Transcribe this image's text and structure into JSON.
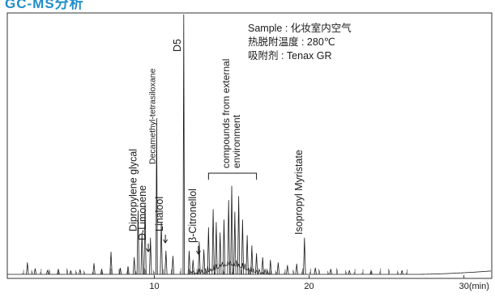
{
  "header": {
    "title": "GC-MS分析",
    "accent_color": "#1f8ec9"
  },
  "sample_info": {
    "line1": "Sample : 化妆室内空气",
    "line2": "热脱附温度 : 280℃",
    "line3": "吸附剂 : Tenax GR"
  },
  "chart_data": {
    "type": "line",
    "title": "",
    "xlabel": "",
    "ylabel": "",
    "x_unit_label": "30(min)",
    "xlim": [
      0.5,
      31.8
    ],
    "ylim": [
      0,
      100
    ],
    "ticks": [
      {
        "value": 10,
        "label": "10"
      },
      {
        "value": 20,
        "label": "20"
      },
      {
        "value": 30,
        "label": "30(min)"
      }
    ],
    "grid": false,
    "line_color": "#1a1a1a",
    "peaks": [
      {
        "x": 1.8,
        "h": 4.5
      },
      {
        "x": 2.3,
        "h": 2.2
      },
      {
        "x": 3.1,
        "h": 1.6
      },
      {
        "x": 3.8,
        "h": 2.0
      },
      {
        "x": 4.6,
        "h": 1.4
      },
      {
        "x": 5.2,
        "h": 1.8
      },
      {
        "x": 6.1,
        "h": 4.2
      },
      {
        "x": 6.6,
        "h": 2.0
      },
      {
        "x": 7.2,
        "h": 8.6
      },
      {
        "x": 7.8,
        "h": 2.4
      },
      {
        "x": 8.3,
        "h": 3.0
      },
      {
        "x": 8.7,
        "h": 6.5
      },
      {
        "x": 8.95,
        "h": 24.5
      },
      {
        "x": 9.2,
        "h": 16.0
      },
      {
        "x": 9.4,
        "h": 27.0
      },
      {
        "x": 9.75,
        "h": 14.0
      },
      {
        "x": 10.15,
        "h": 60.0
      },
      {
        "x": 10.45,
        "h": 20.0
      },
      {
        "x": 10.75,
        "h": 9.0
      },
      {
        "x": 11.2,
        "h": 7.0
      },
      {
        "x": 11.9,
        "h": 100.0
      },
      {
        "x": 12.25,
        "h": 9.0
      },
      {
        "x": 12.5,
        "h": 5.5
      },
      {
        "x": 12.9,
        "h": 12.5
      },
      {
        "x": 13.2,
        "h": 9.5
      },
      {
        "x": 13.5,
        "h": 18.0
      },
      {
        "x": 13.8,
        "h": 25.0
      },
      {
        "x": 14.0,
        "h": 20.0
      },
      {
        "x": 14.25,
        "h": 16.0
      },
      {
        "x": 14.5,
        "h": 21.0
      },
      {
        "x": 14.8,
        "h": 28.5
      },
      {
        "x": 15.0,
        "h": 34.0
      },
      {
        "x": 15.2,
        "h": 24.0
      },
      {
        "x": 15.45,
        "h": 30.0
      },
      {
        "x": 15.7,
        "h": 21.0
      },
      {
        "x": 16.0,
        "h": 15.0
      },
      {
        "x": 16.3,
        "h": 11.0
      },
      {
        "x": 16.6,
        "h": 8.0
      },
      {
        "x": 17.0,
        "h": 6.5
      },
      {
        "x": 17.5,
        "h": 5.5
      },
      {
        "x": 18.0,
        "h": 4.5
      },
      {
        "x": 18.6,
        "h": 3.5
      },
      {
        "x": 19.2,
        "h": 4.0
      },
      {
        "x": 19.7,
        "h": 14.0
      },
      {
        "x": 20.4,
        "h": 2.5
      },
      {
        "x": 21.4,
        "h": 2.0
      },
      {
        "x": 22.6,
        "h": 1.5
      },
      {
        "x": 24.0,
        "h": 1.2
      },
      {
        "x": 26.0,
        "h": 1.5
      }
    ],
    "annotations": [
      {
        "label": "Dipropylene glycal",
        "x": 8.95,
        "arrow": false
      },
      {
        "label": "D-Limonene",
        "x": 9.4,
        "arrow": true
      },
      {
        "label": "Linalool",
        "x": 10.45,
        "arrow": true
      },
      {
        "label": "Decamethyl-tetrasiloxane",
        "x": 10.15,
        "arrow": false
      },
      {
        "label": "D5",
        "x": 11.9,
        "arrow": false
      },
      {
        "label": "β-Citronellol",
        "x": 12.9,
        "arrow": true
      },
      {
        "label": "compounds from external environment",
        "x": 14.8,
        "bracket": [
          13.5,
          16.6
        ]
      },
      {
        "label": "Isopropyl Myristate",
        "x": 19.7,
        "arrow": false
      }
    ]
  }
}
